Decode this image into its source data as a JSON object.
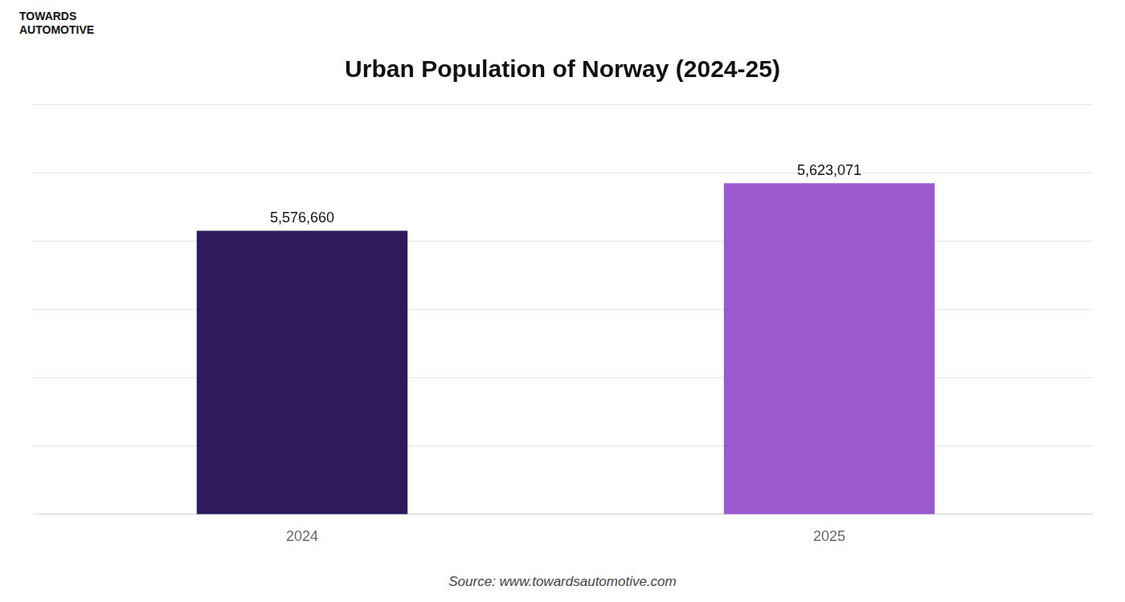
{
  "chart_data": {
    "type": "bar",
    "title": "Urban Population of Norway (2024-25)",
    "categories": [
      "2024",
      "2025"
    ],
    "values": [
      5576660,
      5623071
    ],
    "value_labels": [
      "5,576,660",
      "5,623,071"
    ],
    "colors": [
      "#2d1b5e",
      "#9b59d0"
    ],
    "ylim": [
      5300000,
      5700000
    ],
    "yticks": [
      5300000,
      5366666.666666667,
      5433333.333333333,
      5500000,
      5566666.666666667,
      5633333.333333333,
      5700000
    ],
    "grid": true,
    "data_labels": true,
    "tick_labels": "x",
    "annotations": [
      "TOWARDS",
      "AUTOMOTIVE",
      "Source: www.towardsautomotive.com"
    ]
  }
}
